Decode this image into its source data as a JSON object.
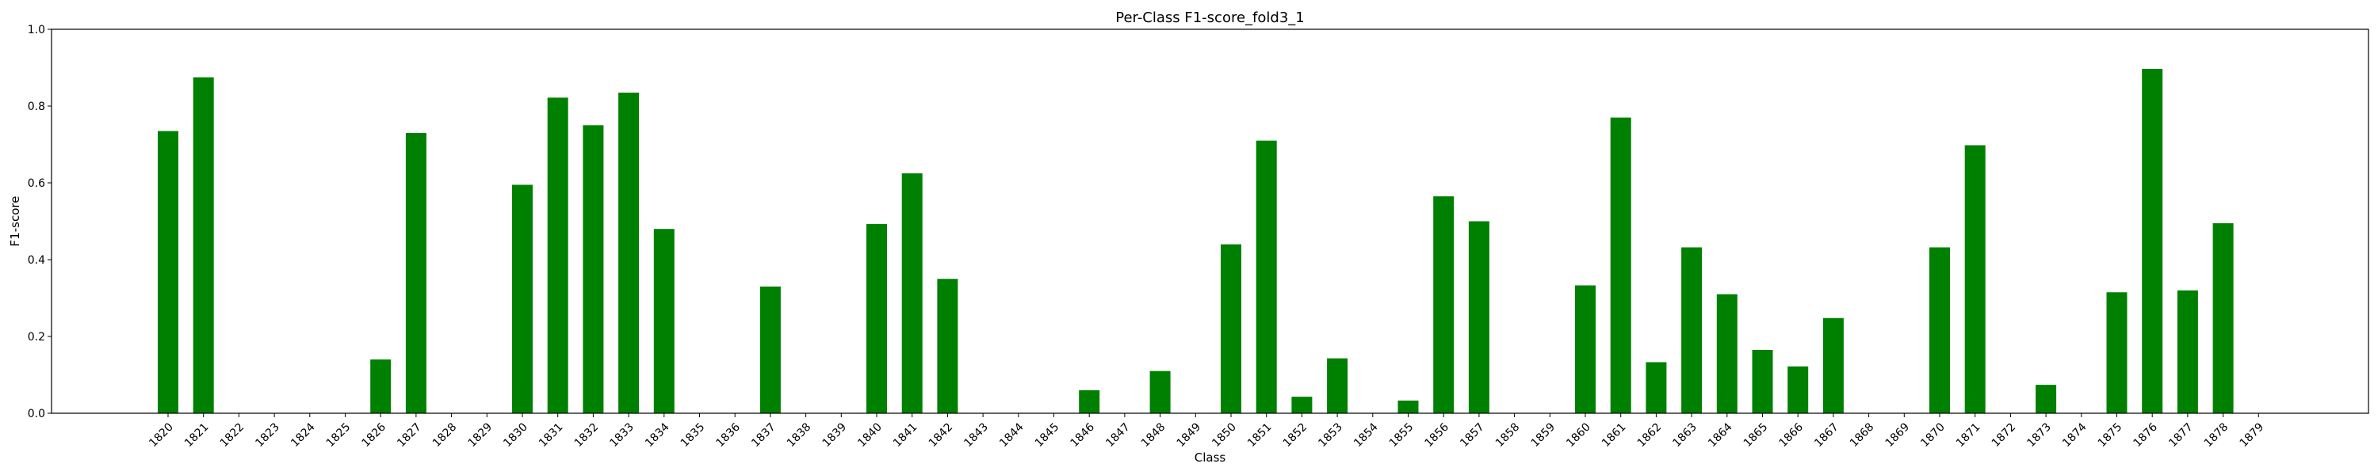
{
  "chart_data": {
    "type": "bar",
    "title": "Per-Class F1-score_fold3_1",
    "xlabel": "Class",
    "ylabel": "F1-score",
    "ylim": [
      0,
      1.0
    ],
    "yticks": [
      "0.0",
      "0.2",
      "0.4",
      "0.6",
      "0.8",
      "1.0"
    ],
    "grid": false,
    "bar_color": "#008000",
    "categories": [
      "1820",
      "1821",
      "1822",
      "1823",
      "1824",
      "1825",
      "1826",
      "1827",
      "1828",
      "1829",
      "1830",
      "1831",
      "1832",
      "1833",
      "1834",
      "1835",
      "1836",
      "1837",
      "1838",
      "1839",
      "1840",
      "1841",
      "1842",
      "1843",
      "1844",
      "1845",
      "1846",
      "1847",
      "1848",
      "1849",
      "1850",
      "1851",
      "1852",
      "1853",
      "1854",
      "1855",
      "1856",
      "1857",
      "1858",
      "1859",
      "1860",
      "1861",
      "1862",
      "1863",
      "1864",
      "1865",
      "1866",
      "1867",
      "1868",
      "1869",
      "1870",
      "1871",
      "1872",
      "1873",
      "1874",
      "1875",
      "1876",
      "1877",
      "1878",
      "1879"
    ],
    "values": [
      0.735,
      0.875,
      0,
      0,
      0,
      0,
      0.14,
      0.73,
      0,
      0,
      0.595,
      0.822,
      0.75,
      0.835,
      0.48,
      0,
      0,
      0.33,
      0,
      0,
      0.493,
      0.625,
      0.35,
      0,
      0,
      0,
      0.06,
      0,
      0.11,
      0,
      0.44,
      0.71,
      0.043,
      0.143,
      0,
      0.033,
      0.565,
      0.5,
      0,
      0,
      0.333,
      0.77,
      0.133,
      0.432,
      0.31,
      0.165,
      0.122,
      0.248,
      0,
      0,
      0.432,
      0.698,
      0,
      0.074,
      0,
      0.315,
      0.897,
      0.32,
      0.495,
      0
    ]
  }
}
